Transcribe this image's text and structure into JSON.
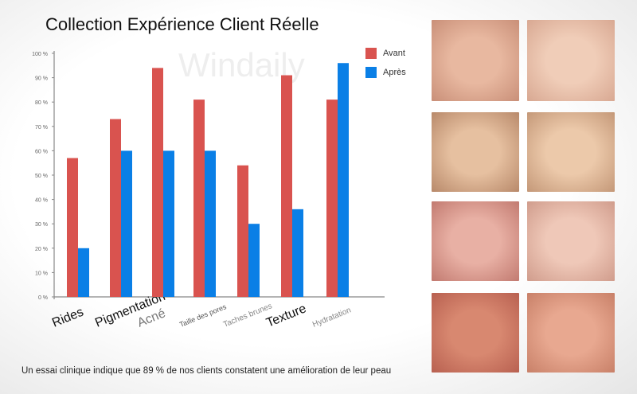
{
  "title": "Collection Expérience Client Réelle",
  "watermark": "Windaily",
  "footer": "Un essai clinique indique que 89 % de nos clients constatent une amélioration de leur peau",
  "colors": {
    "avant": "#d9534f",
    "apres": "#0a7fe6"
  },
  "chart_data": {
    "type": "bar",
    "title": "Collection Expérience Client Réelle",
    "categories": [
      "Rides",
      "Pigmentation",
      "Acné",
      "Taille des pores",
      "Taches brunes",
      "Texture",
      "Hydratation"
    ],
    "series": [
      {
        "name": "Avant",
        "values": [
          57,
          73,
          94,
          81,
          54,
          91,
          81
        ]
      },
      {
        "name": "Après",
        "values": [
          20,
          60,
          60,
          60,
          30,
          36,
          96
        ]
      }
    ],
    "yticks": [
      "0 %",
      "10 %",
      "20 %",
      "30 %",
      "40 %",
      "50 %",
      "60 %",
      "70 %",
      "80 %",
      "90 %",
      "100 %"
    ],
    "ylim": [
      0,
      100
    ],
    "legend": "top-right"
  },
  "photos": [
    "Femme acné avant",
    "Femme acné après",
    "Femme rides avant",
    "Femme rides après",
    "Femme rougeurs avant",
    "Femme rougeurs après",
    "Visage rosacée avant",
    "Visage rosacée après"
  ]
}
